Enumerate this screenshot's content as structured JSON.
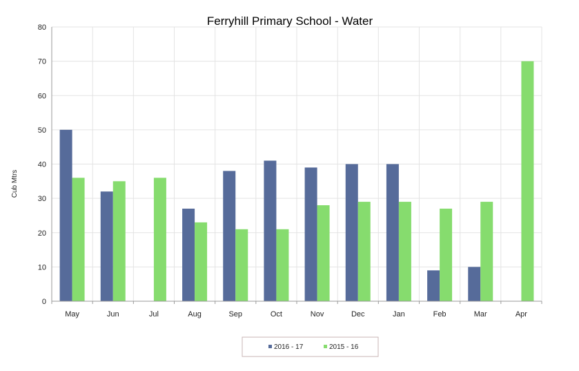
{
  "chart_data": {
    "type": "bar",
    "title": "Ferryhill Primary School  - Water",
    "xlabel": "",
    "ylabel": "Cub Mtrs",
    "ylim": [
      0,
      80
    ],
    "yticks": [
      "0",
      "10",
      "20",
      "30",
      "40",
      "50",
      "60",
      "70",
      "80"
    ],
    "categories": [
      "May",
      "Jun",
      "Jul",
      "Aug",
      "Sep",
      "Oct",
      "Nov",
      "Dec",
      "Jan",
      "Feb",
      "Mar",
      "Apr"
    ],
    "series": [
      {
        "name": "2016 - 17",
        "color": "#566b9a",
        "values": [
          50,
          32,
          null,
          27,
          38,
          41,
          39,
          40,
          40,
          9,
          10,
          null
        ]
      },
      {
        "name": "2015 - 16",
        "color": "#86dc6e",
        "values": [
          36,
          35,
          36,
          23,
          21,
          21,
          28,
          29,
          29,
          27,
          29,
          70
        ]
      }
    ],
    "grid": true,
    "legend_position": "bottom-center"
  }
}
